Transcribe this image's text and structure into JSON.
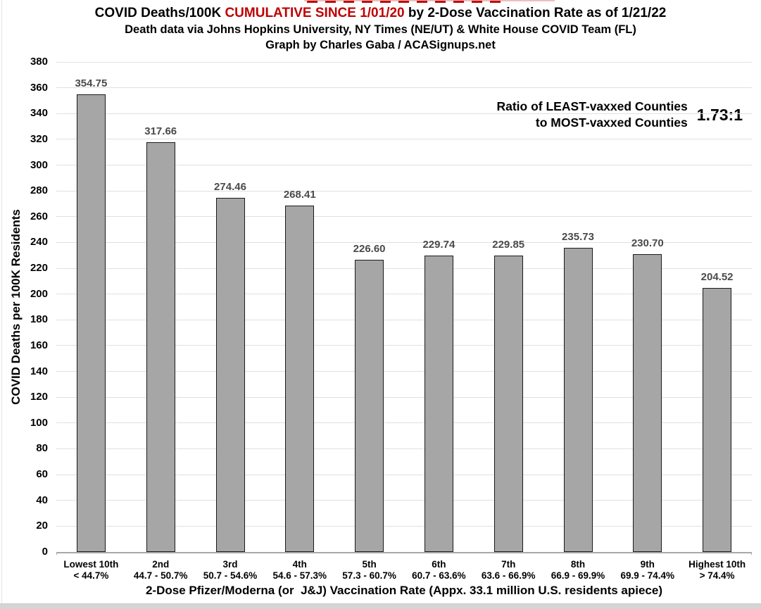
{
  "page": {
    "title": {
      "prefix": "COVID Deaths/100K ",
      "highlight": "CUMULATIVE SINCE 1/01/20",
      "suffix": " by 2-Dose Vaccination Rate as of 1/21/22"
    },
    "subtitle": "Death data via Johns Hopkins University, NY Times (NE/UT) & White House COVID Team (FL)",
    "credit": "Graph by Charles Gaba / ACASignups.net"
  },
  "annotation": {
    "line1": "Ratio of LEAST-vaxxed Counties",
    "line2": "to MOST-vaxxed Counties",
    "ratio": "1.73:1"
  },
  "chart_data": {
    "type": "bar",
    "title": "COVID Deaths/100K CUMULATIVE SINCE 1/01/20 by 2-Dose Vaccination Rate as of 1/21/22",
    "subtitle": "Death data via Johns Hopkins University, NY Times (NE/UT) & White House COVID Team (FL)",
    "credit": "Graph by Charles Gaba / ACASignups.net",
    "categories": [
      "Lowest 10th",
      "2nd",
      "3rd",
      "4th",
      "5th",
      "6th",
      "7th",
      "8th",
      "9th",
      "Highest 10th"
    ],
    "category_ranges": [
      "< 44.7%",
      "44.7 - 50.7%",
      "50.7 - 54.6%",
      "54.6 - 57.3%",
      "57.3 - 60.7%",
      "60.7 - 63.6%",
      "63.6 - 66.9%",
      "66.9 - 69.9%",
      "69.9 - 74.4%",
      "> 74.4%"
    ],
    "values": [
      354.75,
      317.66,
      274.46,
      268.41,
      226.6,
      229.74,
      229.85,
      235.73,
      230.7,
      204.52
    ],
    "value_labels": [
      "354.75",
      "317.66",
      "274.46",
      "268.41",
      "226.60",
      "229.74",
      "229.85",
      "235.73",
      "230.70",
      "204.52"
    ],
    "xlabel": "2-Dose Pfizer/Moderna (or  J&J) Vaccination Rate (Appx. 33.1 million U.S. residents apiece)",
    "ylabel": "COVID Deaths per 100K Residents",
    "ylim": [
      0,
      380
    ],
    "ytick_step": 20,
    "grid": true,
    "legend_position": "none",
    "annotation": {
      "text": "Ratio of LEAST-vaxxed Counties to MOST-vaxxed Counties",
      "value": "1.73:1"
    },
    "colors": {
      "bar_fill": "#a6a6a6",
      "bar_border": "#1a1a1a",
      "value_label": "#4a4a4a",
      "title_highlight": "#c00000",
      "gridline": "#e0e0e0",
      "background": "#ffffff"
    }
  }
}
